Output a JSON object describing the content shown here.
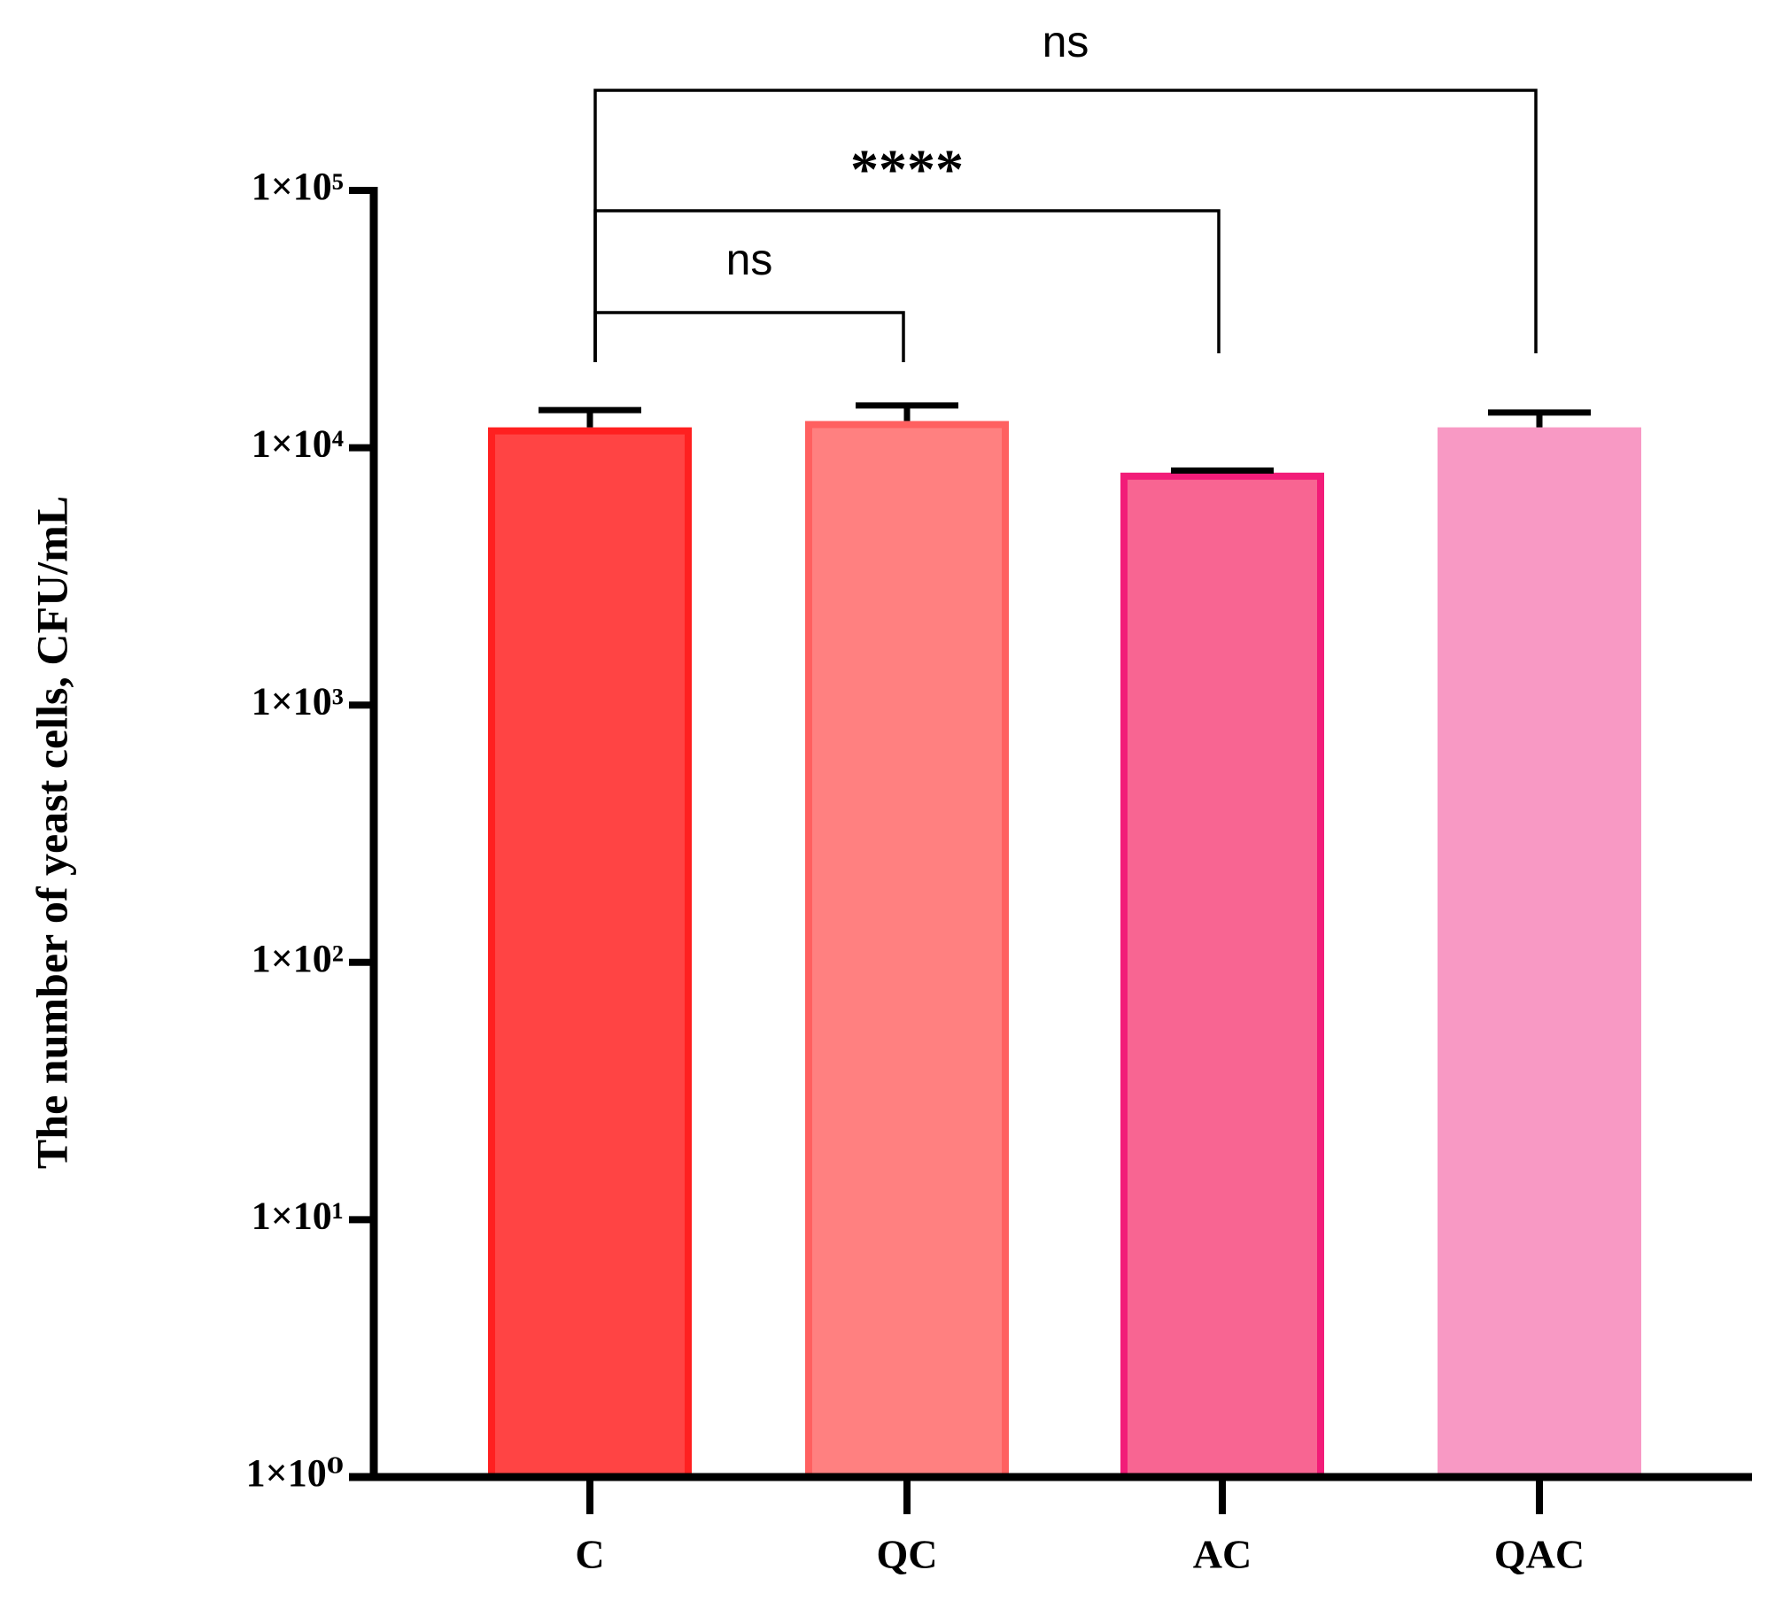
{
  "chart_data": {
    "type": "bar",
    "y_label": "The number of yeast cells, CFU/mL",
    "log_scale": true,
    "categories": [
      "C",
      "QC",
      "AC",
      "QAC"
    ],
    "values": [
      12000,
      12700,
      8000,
      12000
    ],
    "errors": [
      2000,
      1900,
      150,
      1700
    ],
    "colors": [
      "#ff4444",
      "#ff8080",
      "#f86592",
      "#f899c4"
    ],
    "edge_colors": [
      "#ff2020",
      "#ff6060",
      "#f21c78",
      "#f899c4"
    ],
    "ylim": [
      1,
      100000
    ],
    "yticks": [
      {
        "value": 1,
        "label": "1×10⁰"
      },
      {
        "value": 10,
        "label": "1×10¹"
      },
      {
        "value": 100,
        "label": "1×10²"
      },
      {
        "value": 1000,
        "label": "1×10³"
      },
      {
        "value": 10000,
        "label": "1×10⁴"
      },
      {
        "value": 100000,
        "label": "1×10⁵"
      }
    ],
    "annotations": [
      "ns",
      "****",
      "ns"
    ]
  }
}
